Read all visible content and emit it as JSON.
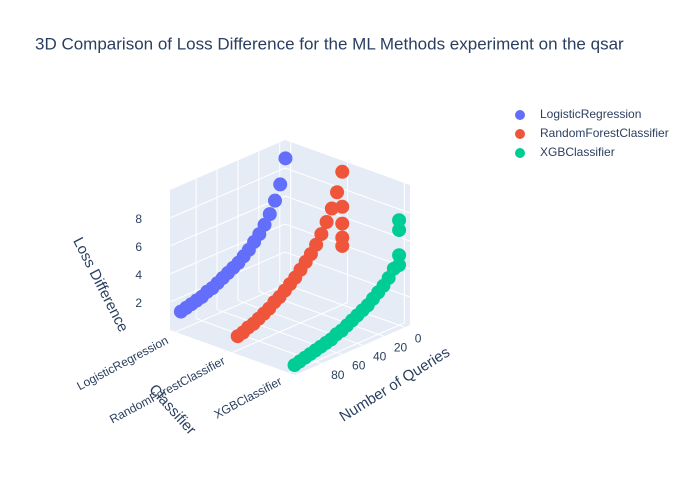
{
  "chart_data": {
    "type": "scatter3d",
    "title": "3D Comparison of Loss Difference for the ML Methods experiment on the qsar",
    "x_label": "Number of Queries",
    "z_label": "Loss Difference",
    "category_label": "Classifier",
    "categories": [
      "LogisticRegression",
      "RandomForestClassifier",
      "XGBClassifier"
    ],
    "xlim": [
      -5,
      105
    ],
    "xticks": [
      0,
      20,
      40,
      60,
      80
    ],
    "zlim": [
      0,
      10
    ],
    "zticks": [
      2,
      4,
      6,
      8
    ],
    "series": [
      {
        "name": "LogisticRegression",
        "color": "#636efa",
        "x": [
          0,
          5,
          10,
          15,
          20,
          25,
          30,
          35,
          40,
          45,
          50,
          55,
          60,
          65,
          70,
          75,
          80,
          85,
          90,
          95,
          100
        ],
        "values": [
          9.0,
          7.3,
          6.3,
          5.5,
          4.9,
          4.4,
          4.0,
          3.6,
          3.3,
          3.0,
          2.8,
          2.6,
          2.4,
          2.2,
          2.0,
          1.9,
          1.7,
          1.6,
          1.5,
          1.4,
          1.3
        ]
      },
      {
        "name": "RandomForestClassifier",
        "color": "#ef553b",
        "x": [
          0,
          5,
          10,
          15,
          20,
          25,
          30,
          35,
          40,
          45,
          50,
          55,
          60,
          65,
          70,
          75,
          80,
          85,
          90,
          95,
          100,
          0,
          0,
          0,
          0
        ],
        "values": [
          9.5,
          8.2,
          7.2,
          6.4,
          5.7,
          5.1,
          4.6,
          4.2,
          3.8,
          3.4,
          3.1,
          2.8,
          2.5,
          2.3,
          2.0,
          1.8,
          1.6,
          1.4,
          1.3,
          1.1,
          1.0,
          7.0,
          5.8,
          4.8,
          4.2
        ]
      },
      {
        "name": "XGBClassifier",
        "color": "#00cc96",
        "x": [
          0,
          5,
          10,
          15,
          20,
          25,
          30,
          35,
          40,
          45,
          50,
          55,
          60,
          65,
          70,
          75,
          80,
          85,
          90,
          95,
          100,
          0,
          0,
          0
        ],
        "values": [
          5.0,
          4.2,
          3.7,
          3.3,
          3.0,
          2.7,
          2.4,
          2.2,
          2.0,
          1.8,
          1.6,
          1.4,
          1.3,
          1.1,
          1.0,
          0.9,
          0.8,
          0.7,
          0.6,
          0.5,
          0.4,
          7.5,
          6.8,
          4.3
        ]
      }
    ]
  }
}
